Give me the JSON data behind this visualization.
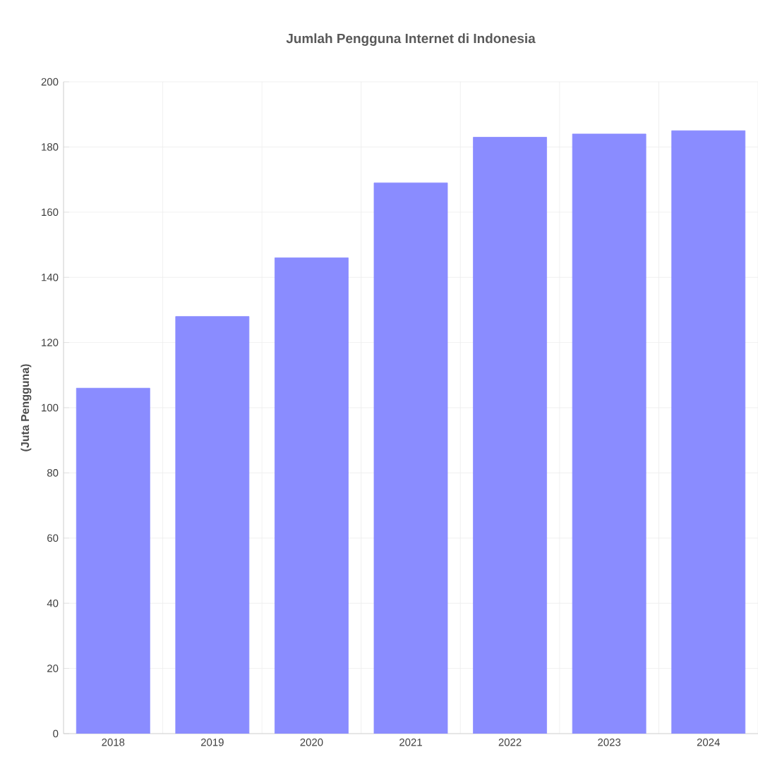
{
  "chart_data": {
    "type": "bar",
    "title": "Jumlah Pengguna Internet di Indonesia",
    "ylabel": "(Juta Pengguna)",
    "categories": [
      "2018",
      "2019",
      "2020",
      "2021",
      "2022",
      "2023",
      "2024"
    ],
    "values": [
      106,
      128,
      146,
      169,
      183,
      184,
      185
    ],
    "color": "#8a8cff",
    "ylim": [
      0,
      200
    ],
    "yticks": [
      0,
      20,
      40,
      60,
      80,
      100,
      120,
      140,
      160,
      180,
      200
    ],
    "grid": true
  }
}
